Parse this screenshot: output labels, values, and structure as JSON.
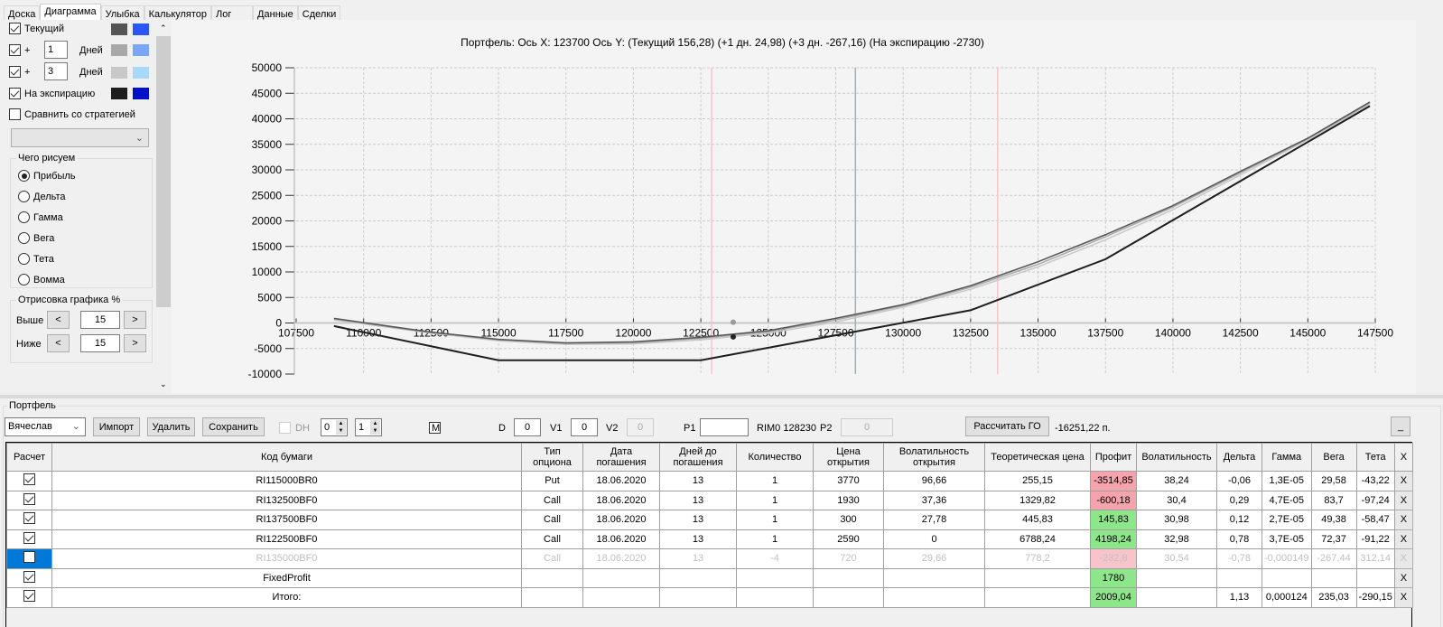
{
  "tabs": [
    "Доска",
    "Диаграмма",
    "Улыбка",
    "Калькулятор",
    "Лог",
    "Данные",
    "Сделки"
  ],
  "active_tab": "Диаграмма",
  "left_panel": {
    "current": {
      "label": "Текущий",
      "checked": true,
      "colors": [
        "#555555",
        "#2a56f5"
      ]
    },
    "plus1": {
      "prefix": "+",
      "days": "1",
      "unit": "Дней",
      "checked": true,
      "colors": [
        "#a8a8a8",
        "#7aa7f5"
      ]
    },
    "plus3": {
      "prefix": "+",
      "days": "3",
      "unit": "Дней",
      "checked": true,
      "colors": [
        "#c8c8c8",
        "#a8d8fa"
      ]
    },
    "expiration": {
      "label": "На экспирацию",
      "checked": true,
      "colors": [
        "#1e1e1e",
        "#0010c8"
      ]
    },
    "compare": {
      "label": "Сравнить со стратегией",
      "checked": false
    },
    "draw_group": {
      "title": "Чего рисуем",
      "options": [
        "Прибыль",
        "Дельта",
        "Гамма",
        "Вега",
        "Тета",
        "Вомма"
      ],
      "selected": "Прибыль"
    },
    "range_group": {
      "title": "Отрисовка графика %",
      "above_label": "Выше",
      "above": "15",
      "below_label": "Ниже",
      "below": "15",
      "dec": "<",
      "inc": ">"
    }
  },
  "chart_data": {
    "type": "line",
    "title": "Портфель: Ось X: 123700 Ось Y:  (Текущий 156,28)  (+1 дн. 24,98)  (+3 дн. -267,16)  (На экспирацию -2730)",
    "xlim": [
      107500,
      147500
    ],
    "ylim": [
      -10000,
      50000
    ],
    "xticks": [
      107500,
      110000,
      112500,
      115000,
      117500,
      120000,
      122500,
      125000,
      127500,
      130000,
      132500,
      135000,
      137500,
      140000,
      142500,
      145000,
      147500
    ],
    "yticks": [
      -10000,
      -5000,
      0,
      5000,
      10000,
      15000,
      20000,
      25000,
      30000,
      35000,
      40000,
      45000,
      50000
    ],
    "grid": true,
    "series": [
      {
        "key": "plus3",
        "color": "#c8c8c8",
        "points": [
          [
            108900,
            600
          ],
          [
            112500,
            -2000
          ],
          [
            115000,
            -3500
          ],
          [
            117500,
            -4200
          ],
          [
            120000,
            -4100
          ],
          [
            122500,
            -3300
          ],
          [
            125000,
            -2000
          ],
          [
            127500,
            200
          ],
          [
            130000,
            3100
          ],
          [
            132500,
            6600
          ],
          [
            135000,
            11000
          ],
          [
            137500,
            16300
          ],
          [
            140000,
            22200
          ],
          [
            142500,
            29000
          ],
          [
            145000,
            35900
          ],
          [
            147300,
            42800
          ]
        ]
      },
      {
        "key": "plus1",
        "color": "#a8a8a8",
        "points": [
          [
            108900,
            800
          ],
          [
            112500,
            -1900
          ],
          [
            115000,
            -3300
          ],
          [
            117500,
            -4000
          ],
          [
            120000,
            -3900
          ],
          [
            122500,
            -3000
          ],
          [
            125000,
            -1700
          ],
          [
            127500,
            600
          ],
          [
            130000,
            3400
          ],
          [
            132500,
            7000
          ],
          [
            135000,
            11500
          ],
          [
            137500,
            16900
          ],
          [
            140000,
            22700
          ],
          [
            142500,
            29400
          ],
          [
            145000,
            36100
          ],
          [
            147300,
            43100
          ]
        ]
      },
      {
        "key": "current",
        "color": "#555555",
        "points": [
          [
            108900,
            900
          ],
          [
            112500,
            -1800
          ],
          [
            115000,
            -3200
          ],
          [
            117500,
            -3900
          ],
          [
            120000,
            -3700
          ],
          [
            122500,
            -2800
          ],
          [
            125000,
            -1500
          ],
          [
            127500,
            900
          ],
          [
            130000,
            3600
          ],
          [
            132500,
            7300
          ],
          [
            135000,
            12000
          ],
          [
            137500,
            17300
          ],
          [
            140000,
            23000
          ],
          [
            142500,
            29700
          ],
          [
            145000,
            36200
          ],
          [
            147300,
            43300
          ]
        ]
      },
      {
        "key": "expiration",
        "color": "#1e1e1e",
        "points": [
          [
            108900,
            -600
          ],
          [
            115000,
            -7300
          ],
          [
            122500,
            -7300
          ],
          [
            132500,
            2500
          ],
          [
            137500,
            12500
          ],
          [
            147300,
            42500
          ]
        ]
      }
    ],
    "markers": [
      {
        "x": 123700,
        "y": 156.28,
        "color": "#999999"
      },
      {
        "x": 123700,
        "y": -2730,
        "color": "#222222"
      }
    ],
    "vlines": [
      {
        "x": 122900,
        "color": "#f7c4cf"
      },
      {
        "x": 128230,
        "color": "#9eafb8"
      },
      {
        "x": 133500,
        "color": "#f7c4cf"
      }
    ]
  },
  "portfolio": {
    "title": "Портфель",
    "user": "Вячеслав",
    "import": "Импорт",
    "delete": "Удалить",
    "save": "Сохранить",
    "dh_label": "DH",
    "spin1": "0",
    "spin2": "1",
    "m_label": "M",
    "d_label": "D",
    "d": "0",
    "v1_label": "V1",
    "v1": "0",
    "v2_label": "V2",
    "v2": "0",
    "p1_label": "P1",
    "p1": "",
    "rim": "RIM0 128230",
    "p2_label": "P2",
    "p2": "0",
    "calc_go": "Рассчитать ГО",
    "go_value": "-16251,22 п.",
    "minimize": "_"
  },
  "table": {
    "headers": [
      "Расчет",
      "Код бумаги",
      "Тип опциона",
      "Дата погашения",
      "Дней до погашения",
      "Количество",
      "Цена открытия",
      "Волатильность открытия",
      "Теоретическая цена",
      "Профит",
      "Волатильность",
      "Дельта",
      "Гамма",
      "Вега",
      "Тета",
      "X"
    ],
    "rows": [
      {
        "checked": true,
        "cells": [
          "RI115000BR0",
          "Put",
          "18.06.2020",
          "13",
          "1",
          "3770",
          "96,66",
          "255,15",
          "-3514,85",
          "38,24",
          "-0,06",
          "1,3E-05",
          "29,58",
          "-43,22",
          "X"
        ],
        "profit_color": "#f5a3ad"
      },
      {
        "checked": true,
        "cells": [
          "RI132500BF0",
          "Call",
          "18.06.2020",
          "13",
          "1",
          "1930",
          "37,36",
          "1329,82",
          "-600,18",
          "30,4",
          "0,29",
          "4,7E-05",
          "83,7",
          "-97,24",
          "X"
        ],
        "profit_color": "#f5a3ad"
      },
      {
        "checked": true,
        "cells": [
          "RI137500BF0",
          "Call",
          "18.06.2020",
          "13",
          "1",
          "300",
          "27,78",
          "445,83",
          "145,83",
          "30,98",
          "0,12",
          "2,7E-05",
          "49,38",
          "-58,47",
          "X"
        ],
        "profit_color": "#8ee68a"
      },
      {
        "checked": true,
        "cells": [
          "RI122500BF0",
          "Call",
          "18.06.2020",
          "13",
          "1",
          "2590",
          "0",
          "6788,24",
          "4198,24",
          "32,98",
          "0,78",
          "3,7E-05",
          "72,37",
          "-91,22",
          "X"
        ],
        "profit_color": "#8ee68a"
      },
      {
        "checked": false,
        "disabled": true,
        "cells": [
          "RI135000BF0",
          "Call",
          "18.06.2020",
          "13",
          "-4",
          "720",
          "29,66",
          "778,2",
          "-232,8",
          "30,54",
          "-0,78",
          "-0,000149",
          "-267,44",
          "312,14",
          "X"
        ],
        "profit_color": "#f8c4cc"
      },
      {
        "checked": true,
        "cells": [
          "FixedProfit",
          "",
          "",
          "",
          "",
          "",
          "",
          "",
          "1780",
          "",
          "",
          "",
          "",
          "",
          "X"
        ],
        "profit_color": "#8ee68a"
      },
      {
        "checked": true,
        "cells": [
          "Итого:",
          "",
          "",
          "",
          "",
          "",
          "",
          "",
          "2009,04",
          "",
          "1,13",
          "0,000124",
          "235,03",
          "-290,15",
          "X"
        ],
        "profit_color": "#8ee68a"
      }
    ]
  }
}
